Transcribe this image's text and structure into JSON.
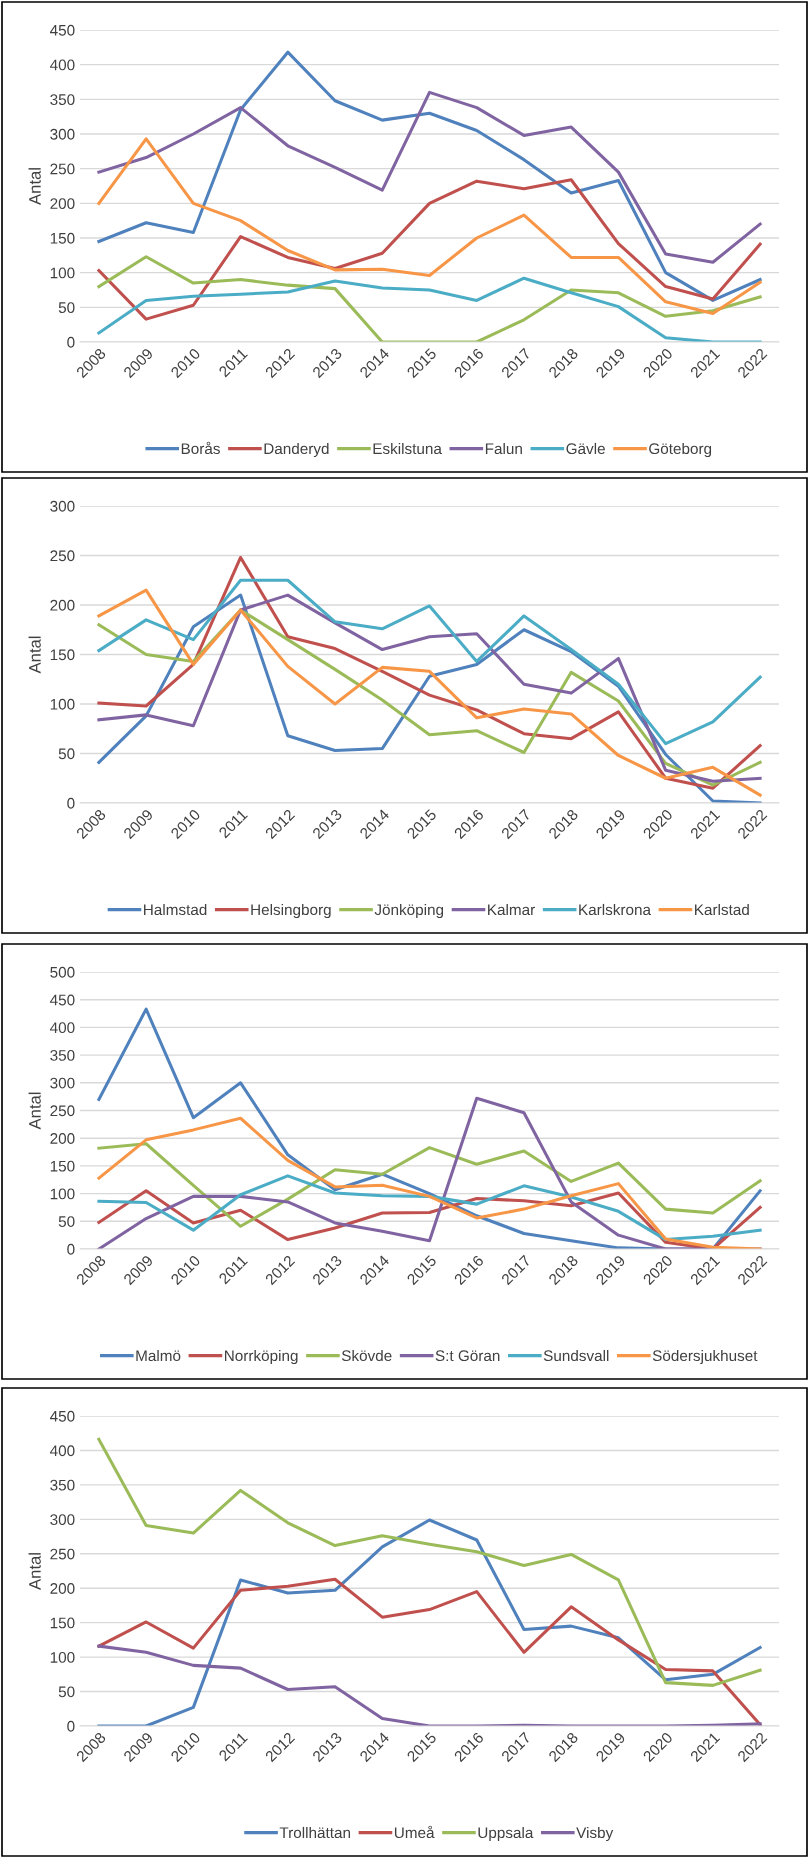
{
  "chart_data": [
    {
      "type": "line",
      "ylabel": "Antal",
      "categories": [
        "2008",
        "2009",
        "2010",
        "2011",
        "2012",
        "2013",
        "2014",
        "2015",
        "2016",
        "2017",
        "2018",
        "2019",
        "2020",
        "2021",
        "2022"
      ],
      "ylim": [
        0,
        450
      ],
      "yticks": [
        0,
        50,
        100,
        150,
        200,
        250,
        300,
        350,
        400,
        450
      ],
      "grid": "y",
      "legend": "bottom",
      "marker": "none",
      "line_style": "solid",
      "series": [
        {
          "name": "Borås",
          "color": "#4f81bd",
          "values": [
            145,
            172,
            158,
            335,
            418,
            348,
            320,
            330,
            305,
            263,
            215,
            233,
            100,
            60,
            90
          ]
        },
        {
          "name": "Danderyd",
          "color": "#c0504d",
          "values": [
            103,
            33,
            53,
            152,
            122,
            106,
            128,
            200,
            232,
            221,
            234,
            142,
            80,
            62,
            141
          ]
        },
        {
          "name": "Eskilstuna",
          "color": "#9bbb59",
          "values": [
            80,
            123,
            85,
            90,
            82,
            77,
            0,
            0,
            0,
            32,
            75,
            71,
            37,
            45,
            65
          ]
        },
        {
          "name": "Falun",
          "color": "#8064a2",
          "values": [
            245,
            266,
            300,
            338,
            283,
            252,
            219,
            360,
            338,
            298,
            310,
            245,
            127,
            115,
            170
          ]
        },
        {
          "name": "Gävle",
          "color": "#4bacc6",
          "values": [
            13,
            60,
            66,
            69,
            72,
            88,
            78,
            75,
            60,
            92,
            71,
            51,
            6,
            0,
            0
          ]
        },
        {
          "name": "Göteborg",
          "color": "#f79646",
          "values": [
            200,
            293,
            200,
            175,
            132,
            104,
            105,
            96,
            150,
            183,
            122,
            122,
            58,
            41,
            86
          ]
        }
      ]
    },
    {
      "type": "line",
      "ylabel": "Antal",
      "categories": [
        "2008",
        "2009",
        "2010",
        "2011",
        "2012",
        "2013",
        "2014",
        "2015",
        "2016",
        "2017",
        "2018",
        "2019",
        "2020",
        "2021",
        "2022"
      ],
      "ylim": [
        0,
        300
      ],
      "yticks": [
        0,
        50,
        100,
        150,
        200,
        250,
        300
      ],
      "grid": "y",
      "legend": "bottom",
      "marker": "none",
      "line_style": "solid",
      "series": [
        {
          "name": "Halmstad",
          "color": "#4f81bd",
          "values": [
            41,
            88,
            178,
            210,
            68,
            53,
            55,
            128,
            140,
            175,
            153,
            118,
            49,
            2,
            0
          ]
        },
        {
          "name": "Helsingborg",
          "color": "#c0504d",
          "values": [
            101,
            98,
            140,
            248,
            168,
            156,
            133,
            109,
            94,
            70,
            65,
            92,
            25,
            15,
            58
          ]
        },
        {
          "name": "Jönköping",
          "color": "#9bbb59",
          "values": [
            180,
            150,
            143,
            195,
            165,
            135,
            104,
            69,
            73,
            51,
            132,
            103,
            40,
            18,
            41
          ]
        },
        {
          "name": "Kalmar",
          "color": "#8064a2",
          "values": [
            84,
            89,
            78,
            195,
            210,
            182,
            155,
            168,
            171,
            120,
            111,
            146,
            33,
            22,
            25
          ]
        },
        {
          "name": "Karlskrona",
          "color": "#4bacc6",
          "values": [
            154,
            185,
            165,
            225,
            225,
            183,
            176,
            199,
            143,
            189,
            155,
            120,
            60,
            82,
            127
          ]
        },
        {
          "name": "Karlstad",
          "color": "#f79646",
          "values": [
            189,
            215,
            140,
            195,
            138,
            100,
            137,
            133,
            86,
            95,
            90,
            48,
            25,
            36,
            8
          ]
        }
      ]
    },
    {
      "type": "line",
      "ylabel": "Antal",
      "categories": [
        "2008",
        "2009",
        "2010",
        "2011",
        "2012",
        "2013",
        "2014",
        "2015",
        "2016",
        "2017",
        "2018",
        "2019",
        "2020",
        "2021",
        "2022"
      ],
      "ylim": [
        0,
        500
      ],
      "yticks": [
        0,
        50,
        100,
        150,
        200,
        250,
        300,
        350,
        400,
        450,
        500
      ],
      "grid": "y",
      "legend": "bottom",
      "marker": "none",
      "line_style": "solid",
      "series": [
        {
          "name": "Malmö",
          "color": "#4f81bd",
          "values": [
            270,
            433,
            237,
            300,
            170,
            107,
            135,
            100,
            60,
            28,
            15,
            2,
            0,
            0,
            105
          ]
        },
        {
          "name": "Norrköping",
          "color": "#c0504d",
          "values": [
            48,
            105,
            47,
            70,
            17,
            38,
            65,
            66,
            91,
            87,
            78,
            101,
            12,
            0,
            75
          ]
        },
        {
          "name": "Skövde",
          "color": "#9bbb59",
          "values": [
            182,
            190,
            115,
            41,
            90,
            143,
            135,
            183,
            153,
            177,
            122,
            155,
            72,
            65,
            123
          ]
        },
        {
          "name": "S:t Göran",
          "color": "#8064a2",
          "values": [
            0,
            55,
            95,
            95,
            85,
            47,
            32,
            15,
            272,
            246,
            85,
            25,
            0,
            0,
            0
          ]
        },
        {
          "name": "Sundsvall",
          "color": "#4bacc6",
          "values": [
            86,
            84,
            34,
            98,
            132,
            101,
            96,
            95,
            81,
            114,
            94,
            68,
            17,
            23,
            34
          ]
        },
        {
          "name": "Södersjukhuset",
          "color": "#f79646",
          "values": [
            128,
            197,
            215,
            236,
            160,
            112,
            115,
            95,
            56,
            72,
            96,
            118,
            18,
            3,
            0
          ]
        }
      ]
    },
    {
      "type": "line",
      "ylabel": "Antal",
      "categories": [
        "2008",
        "2009",
        "2010",
        "2011",
        "2012",
        "2013",
        "2014",
        "2015",
        "2016",
        "2017",
        "2018",
        "2019",
        "2020",
        "2021",
        "2022"
      ],
      "ylim": [
        0,
        450
      ],
      "yticks": [
        0,
        50,
        100,
        150,
        200,
        250,
        300,
        350,
        400,
        450
      ],
      "grid": "y",
      "legend": "bottom",
      "marker": "none",
      "line_style": "solid",
      "series": [
        {
          "name": "Trollhättan",
          "color": "#4f81bd",
          "values": [
            0,
            0,
            27,
            212,
            193,
            197,
            260,
            299,
            270,
            140,
            145,
            128,
            67,
            75,
            114
          ]
        },
        {
          "name": "Umeå",
          "color": "#c0504d",
          "values": [
            116,
            151,
            113,
            197,
            203,
            213,
            158,
            169,
            195,
            107,
            173,
            125,
            82,
            80,
            2
          ]
        },
        {
          "name": "Uppsala",
          "color": "#9bbb59",
          "values": [
            416,
            291,
            280,
            342,
            295,
            262,
            276,
            264,
            253,
            233,
            249,
            212,
            63,
            59,
            81
          ]
        },
        {
          "name": "Visby",
          "color": "#8064a2",
          "values": [
            116,
            107,
            88,
            84,
            53,
            57,
            11,
            0,
            0,
            1,
            0,
            0,
            0,
            1,
            3
          ]
        }
      ]
    }
  ]
}
